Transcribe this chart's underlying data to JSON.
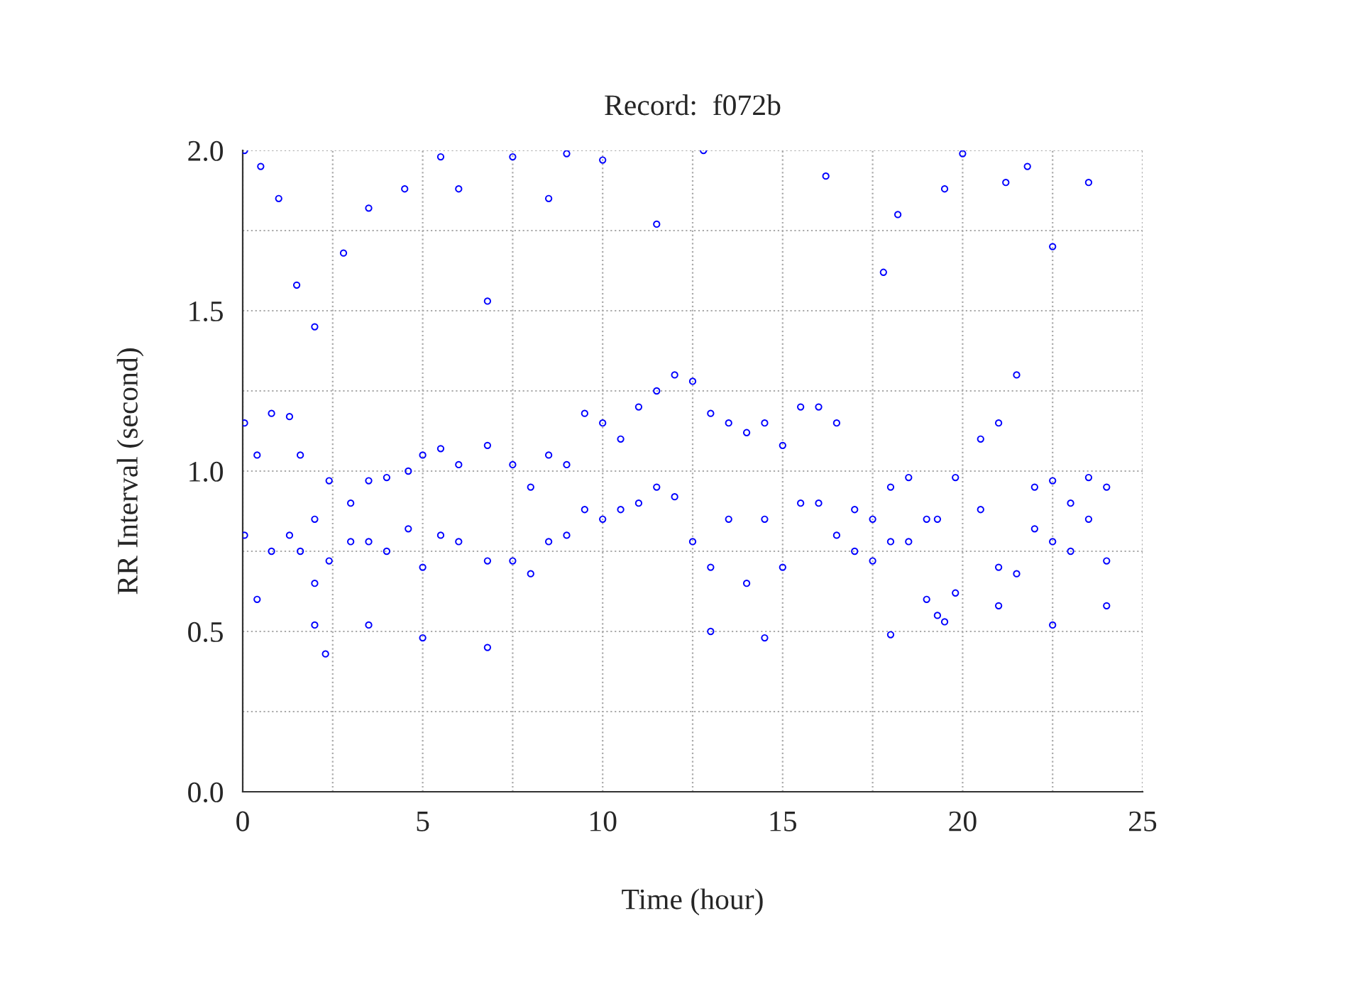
{
  "chart_data": {
    "type": "scatter",
    "title": "Record:  f072b",
    "xlabel": "Time (hour)",
    "ylabel": "RR Interval (second)",
    "x": [
      0.05,
      0.05,
      0.4,
      0.4,
      0.8,
      0.8,
      1.3,
      1.3,
      1.6,
      1.6,
      2.0,
      2.0,
      2.4,
      2.4,
      3.0,
      3.0,
      3.5,
      3.5,
      4.0,
      4.0,
      4.6,
      4.6,
      5.0,
      5.0,
      5.5,
      5.5,
      6.0,
      6.0,
      6.8,
      6.8,
      7.5,
      7.5,
      8.0,
      8.0,
      8.5,
      8.5,
      9.0,
      9.0,
      9.5,
      9.5,
      10.0,
      10.0,
      10.5,
      10.5,
      11.0,
      11.0,
      11.5,
      11.5,
      12.0,
      12.0,
      12.5,
      12.5,
      13.0,
      13.0,
      13.5,
      13.5,
      14.0,
      14.0,
      14.5,
      14.5,
      15.0,
      15.0,
      15.5,
      15.5,
      16.0,
      16.0,
      16.5,
      16.5,
      17.0,
      17.0,
      17.5,
      17.5,
      18.0,
      18.0,
      18.5,
      18.5,
      19.0,
      19.0,
      19.3,
      19.3,
      19.8,
      19.8,
      20.5,
      20.5,
      21.0,
      21.0,
      21.5,
      21.5,
      22.0,
      22.0,
      22.5,
      22.5,
      23.0,
      23.0,
      23.5,
      23.5,
      24.0,
      24.0,
      0.05,
      0.5,
      1.0,
      1.5,
      2.0,
      2.8,
      3.5,
      4.5,
      5.5,
      6.0,
      6.8,
      7.5,
      8.5,
      9.0,
      10.0,
      11.5,
      12.8,
      16.2,
      17.8,
      18.2,
      19.5,
      20.0,
      21.2,
      21.8,
      22.5,
      23.5,
      2.3,
      2.0,
      3.5,
      5.0,
      6.8,
      14.5,
      18.0,
      19.5,
      21.0,
      22.5,
      24.0,
      13.0
    ],
    "values": [
      1.15,
      0.8,
      1.05,
      0.6,
      1.18,
      0.75,
      1.17,
      0.8,
      1.05,
      0.75,
      0.85,
      0.65,
      0.97,
      0.72,
      0.9,
      0.78,
      0.97,
      0.78,
      0.98,
      0.75,
      1.0,
      0.82,
      1.05,
      0.7,
      1.07,
      0.8,
      1.02,
      0.78,
      1.08,
      0.72,
      1.02,
      0.72,
      0.95,
      0.68,
      1.05,
      0.78,
      1.02,
      0.8,
      1.18,
      0.88,
      1.15,
      0.85,
      1.1,
      0.88,
      1.2,
      0.9,
      1.25,
      0.95,
      1.3,
      0.92,
      1.28,
      0.78,
      1.18,
      0.7,
      1.15,
      0.85,
      1.12,
      0.65,
      1.15,
      0.85,
      1.08,
      0.7,
      1.2,
      0.9,
      1.2,
      0.9,
      1.15,
      0.8,
      0.88,
      0.75,
      0.85,
      0.72,
      0.95,
      0.78,
      0.98,
      0.78,
      0.85,
      0.6,
      0.85,
      0.55,
      0.98,
      0.62,
      1.1,
      0.88,
      1.15,
      0.7,
      1.3,
      0.68,
      0.95,
      0.82,
      0.97,
      0.78,
      0.9,
      0.75,
      0.98,
      0.85,
      0.95,
      0.72,
      2.0,
      1.95,
      1.85,
      1.58,
      1.45,
      1.68,
      1.82,
      1.88,
      1.98,
      1.88,
      1.53,
      1.98,
      1.85,
      1.99,
      1.97,
      1.77,
      2.0,
      1.92,
      1.62,
      1.8,
      1.88,
      1.99,
      1.9,
      1.95,
      1.7,
      1.9,
      0.43,
      0.52,
      0.52,
      0.48,
      0.45,
      0.48,
      0.49,
      0.53,
      0.58,
      0.52,
      0.58,
      0.5
    ],
    "color": "#0000ff",
    "marker": "circle",
    "grid": true,
    "xlim": [
      0,
      25
    ],
    "ylim": [
      0,
      2.0
    ],
    "xticks": [
      0,
      {
        "value": 2.5,
        "label": null
      },
      5,
      {
        "value": 7.5,
        "label": null
      },
      10,
      {
        "value": 12.5,
        "label": null
      },
      15,
      {
        "value": 17.5,
        "label": null
      },
      20,
      {
        "value": 22.5,
        "label": null
      },
      25
    ],
    "yticks": [
      {
        "value": 0,
        "label": "0.0"
      },
      {
        "value": 0.25,
        "label": null
      },
      {
        "value": 0.5,
        "label": "0.5"
      },
      {
        "value": 0.75,
        "label": null
      },
      {
        "value": 1.0,
        "label": "1.0"
      },
      {
        "value": 1.25,
        "label": null
      },
      {
        "value": 1.5,
        "label": "1.5"
      },
      {
        "value": 1.75,
        "label": null
      },
      {
        "value": 2.0,
        "label": "2.0"
      }
    ]
  }
}
